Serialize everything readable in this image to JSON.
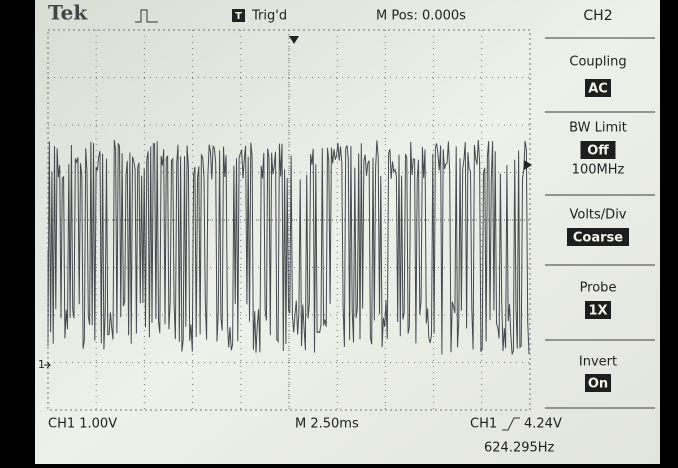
{
  "header": {
    "brand": "Tek",
    "trigger_icon": "T",
    "trigger_status": "Trig'd",
    "position": "M Pos: 0.000s",
    "channel": "CH2"
  },
  "menu": [
    {
      "label": "Coupling",
      "value": "AC"
    },
    {
      "label": "BW Limit",
      "value": "Off",
      "note": "100MHz"
    },
    {
      "label": "Volts/Div",
      "value": "Coarse"
    },
    {
      "label": "Probe",
      "value": "1X"
    },
    {
      "label": "Invert",
      "value": "On"
    }
  ],
  "footer": {
    "ch1_scale": "CH1  1.00V",
    "timebase": "M 2.50ms",
    "trigger_source": "CH1",
    "trigger_level": "4.24V",
    "frequency": "624.295Hz"
  },
  "ground_marker": "1"
}
